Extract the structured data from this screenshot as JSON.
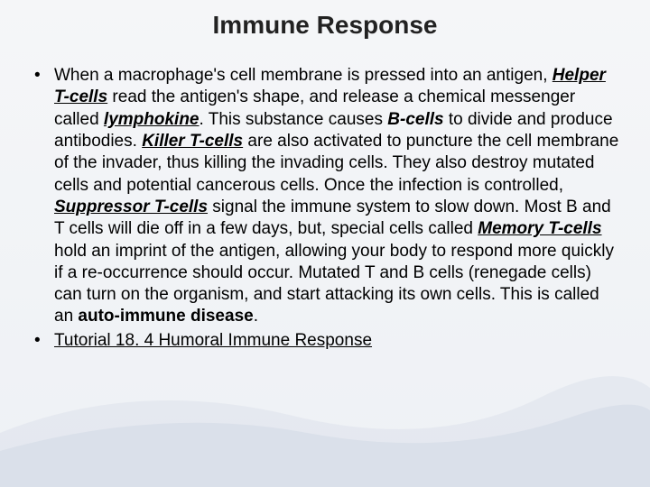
{
  "slide": {
    "title": "Immune Response",
    "background_gradient": [
      "#f5f6f8",
      "#eef1f5"
    ],
    "swoosh_color": "#d6dde8",
    "title_fontsize": 28,
    "body_fontsize": 19,
    "text_color": "#000000",
    "bullets": [
      {
        "type": "paragraph",
        "runs": [
          {
            "t": "When a macrophage's cell membrane is pressed into an antigen, "
          },
          {
            "t": "Helper T-cells",
            "style": "bold-ital under"
          },
          {
            "t": " read the antigen's shape, and release a chemical messenger called "
          },
          {
            "t": "lymphokine",
            "style": "bold-ital under"
          },
          {
            "t": ".  This substance causes "
          },
          {
            "t": "B-cells",
            "style": "bold-ital"
          },
          {
            "t": " to divide and produce antibodies.  "
          },
          {
            "t": "Killer T-cells",
            "style": "bold-ital under"
          },
          {
            "t": " are also activated to puncture the cell membrane of the invader, thus killing the invading cells. They also destroy mutated cells and potential cancerous cells.  Once the infection is controlled, "
          },
          {
            "t": "Suppressor T-cells",
            "style": "bold-ital under"
          },
          {
            "t": " signal the immune system to slow down.  Most B and T cells will die off in a few days, but, special cells called "
          },
          {
            "t": "Memory T-cells",
            "style": "bold-ital under"
          },
          {
            "t": " hold an imprint of the antigen, allowing your body to respond more quickly if a re-occurrence should occur.  Mutated T and B cells (renegade cells) can turn on the organism, and start attacking its own cells.  This is called an "
          },
          {
            "t": "auto-immune disease",
            "style": "bold"
          },
          {
            "t": "."
          }
        ]
      },
      {
        "type": "link",
        "text": "Tutorial 18. 4 Humoral Immune Response"
      }
    ]
  }
}
